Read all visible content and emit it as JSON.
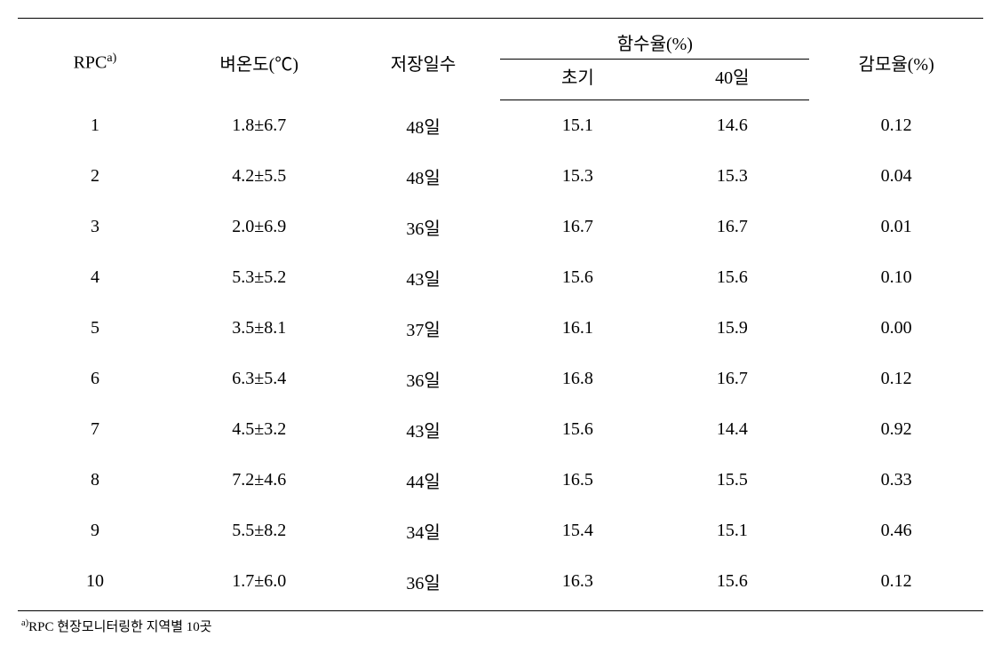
{
  "table": {
    "headers": {
      "rpc": "RPC",
      "rpc_sup": "a)",
      "temperature": "벼온도(℃)",
      "storage_days": "저장일수",
      "moisture": "함수율(%)",
      "moisture_initial": "초기",
      "moisture_40days": "40일",
      "loss_rate": "감모율(%)"
    },
    "rows": [
      {
        "rpc": "1",
        "temp": "1.8±6.7",
        "days": "48일",
        "moist_init": "15.1",
        "moist_40": "14.6",
        "loss": "0.12"
      },
      {
        "rpc": "2",
        "temp": "4.2±5.5",
        "days": "48일",
        "moist_init": "15.3",
        "moist_40": "15.3",
        "loss": "0.04"
      },
      {
        "rpc": "3",
        "temp": "2.0±6.9",
        "days": "36일",
        "moist_init": "16.7",
        "moist_40": "16.7",
        "loss": "0.01"
      },
      {
        "rpc": "4",
        "temp": "5.3±5.2",
        "days": "43일",
        "moist_init": "15.6",
        "moist_40": "15.6",
        "loss": "0.10"
      },
      {
        "rpc": "5",
        "temp": "3.5±8.1",
        "days": "37일",
        "moist_init": "16.1",
        "moist_40": "15.9",
        "loss": "0.00"
      },
      {
        "rpc": "6",
        "temp": "6.3±5.4",
        "days": "36일",
        "moist_init": "16.8",
        "moist_40": "16.7",
        "loss": "0.12"
      },
      {
        "rpc": "7",
        "temp": "4.5±3.2",
        "days": "43일",
        "moist_init": "15.6",
        "moist_40": "14.4",
        "loss": "0.92"
      },
      {
        "rpc": "8",
        "temp": "7.2±4.6",
        "days": "44일",
        "moist_init": "16.5",
        "moist_40": "15.5",
        "loss": "0.33"
      },
      {
        "rpc": "9",
        "temp": "5.5±8.2",
        "days": "34일",
        "moist_init": "15.4",
        "moist_40": "15.1",
        "loss": "0.46"
      },
      {
        "rpc": "10",
        "temp": "1.7±6.0",
        "days": "36일",
        "moist_init": "16.3",
        "moist_40": "15.6",
        "loss": "0.12"
      }
    ],
    "footnote_sup": "a)",
    "footnote_text": "RPC 현장모니터링한 지역별 10곳"
  },
  "styling": {
    "border_color": "#000000",
    "background_color": "#ffffff",
    "text_color": "#000000",
    "font_size_table": 20,
    "font_size_footnote": 15,
    "top_border_width": 1.5,
    "bottom_border_width": 1.5,
    "inner_border_width": 1
  }
}
